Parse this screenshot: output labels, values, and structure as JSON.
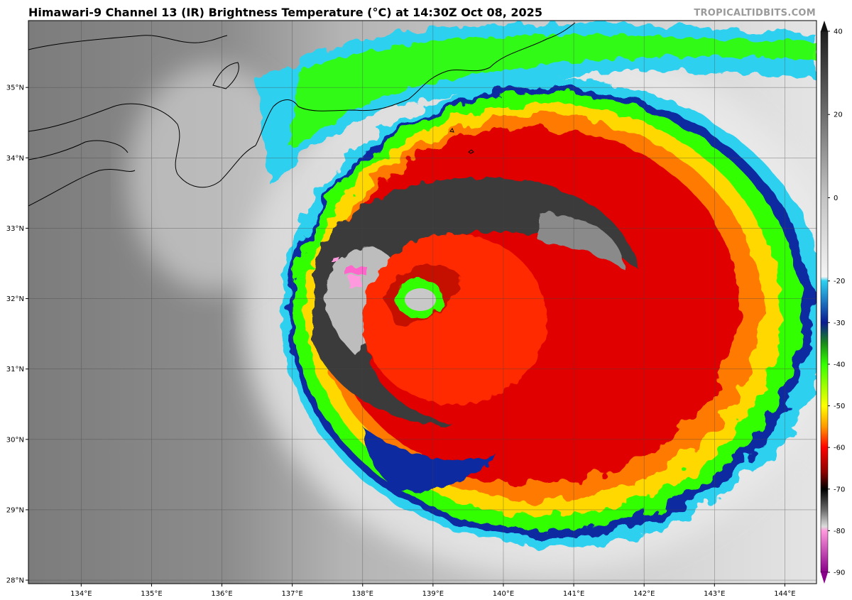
{
  "header": {
    "title": "Himawari-9 Channel 13 (IR) Brightness Temperature (°C) at 14:30Z Oct 08, 2025",
    "credit": "TROPICALTIDBITS.COM"
  },
  "map": {
    "lon_range": [
      133.25,
      144.45
    ],
    "lat_range": [
      27.95,
      35.95
    ],
    "lon_ticks": [
      "134°E",
      "135°E",
      "136°E",
      "137°E",
      "138°E",
      "139°E",
      "140°E",
      "141°E",
      "142°E",
      "143°E",
      "144°E"
    ],
    "lon_values": [
      134,
      135,
      136,
      137,
      138,
      139,
      140,
      141,
      142,
      143,
      144
    ],
    "lat_ticks": [
      "35°N",
      "34°N",
      "33°N",
      "32°N",
      "31°N",
      "30°N",
      "29°N",
      "28°N"
    ],
    "lat_values": [
      35,
      34,
      33,
      32,
      31,
      30,
      29,
      28
    ],
    "gridlines": true,
    "storm_center": {
      "lon": 138.8,
      "lat": 32.0
    },
    "eye_color": "#c8c8c8"
  },
  "colorbar": {
    "labels": [
      "40",
      "20",
      "0",
      "-20",
      "-30",
      "-40",
      "-50",
      "-60",
      "-70",
      "-80",
      "-90"
    ],
    "values": [
      40,
      20,
      0,
      -20,
      -30,
      -40,
      -50,
      -60,
      -70,
      -80,
      -90
    ],
    "range": [
      40,
      -90
    ],
    "stops": [
      {
        "v": 40,
        "c": "#1e1e1e"
      },
      {
        "v": 20,
        "c": "#6e6e6e"
      },
      {
        "v": 0,
        "c": "#c4c4c4"
      },
      {
        "v": -19,
        "c": "#f4f4f4"
      },
      {
        "v": -20,
        "c": "#2fd0f0"
      },
      {
        "v": -30,
        "c": "#0a1a90"
      },
      {
        "v": -35,
        "c": "#1a8a1a"
      },
      {
        "v": -40,
        "c": "#33ff00"
      },
      {
        "v": -50,
        "c": "#ffff00"
      },
      {
        "v": -55,
        "c": "#ff9900"
      },
      {
        "v": -60,
        "c": "#ff0000"
      },
      {
        "v": -66,
        "c": "#8a0000"
      },
      {
        "v": -70,
        "c": "#000000"
      },
      {
        "v": -75,
        "c": "#6a6a6a"
      },
      {
        "v": -79,
        "c": "#dcdcdc"
      },
      {
        "v": -80,
        "c": "#ff99dd"
      },
      {
        "v": -90,
        "c": "#8a008a"
      }
    ]
  }
}
